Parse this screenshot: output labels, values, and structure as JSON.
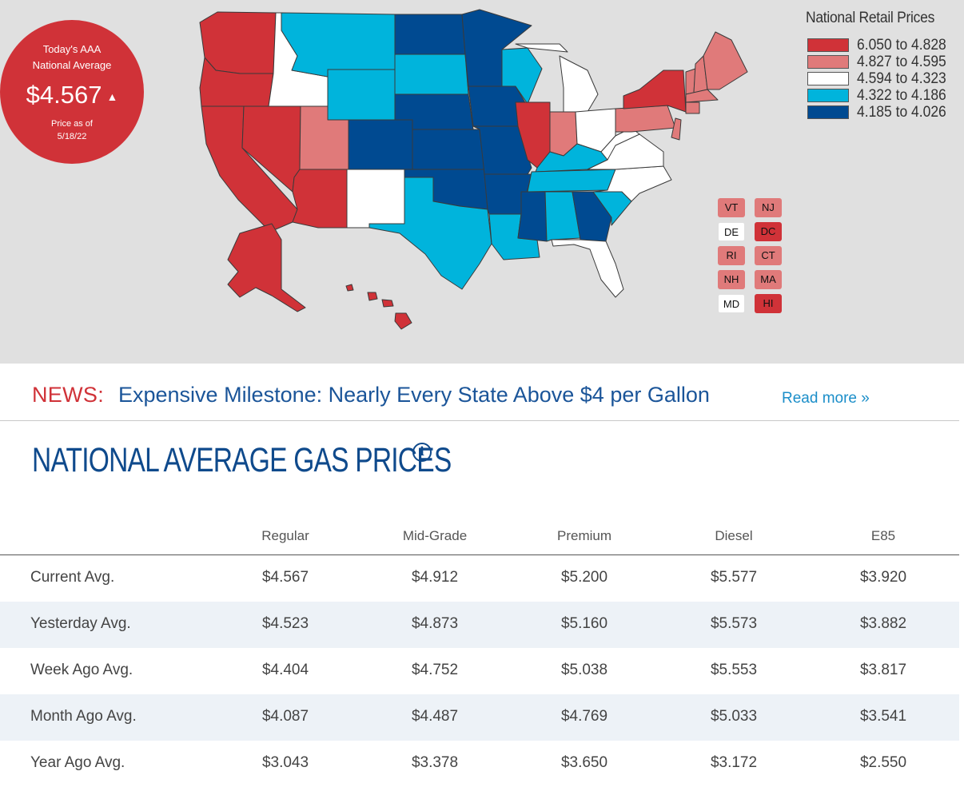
{
  "badge": {
    "title_line1": "Today's AAA",
    "title_line2": "National Average",
    "price": "$4.567",
    "trend_icon": "up-triangle-icon",
    "note_line1": "Price as of",
    "note_line2": "5/18/22",
    "color": "#d03238"
  },
  "legend": {
    "title": "National Retail Prices",
    "items": [
      {
        "label": "6.050 to 4.828",
        "color": "#d03238"
      },
      {
        "label": "4.827 to 4.595",
        "color": "#e07a7a"
      },
      {
        "label": "4.594 to 4.323",
        "color": "#ffffff"
      },
      {
        "label": "4.322 to 4.186",
        "color": "#00b4dc"
      },
      {
        "label": "4.185 to 4.026",
        "color": "#004a91"
      }
    ]
  },
  "small_states": [
    {
      "code": "VT",
      "color": "#e07a7a"
    },
    {
      "code": "NJ",
      "color": "#e07a7a"
    },
    {
      "code": "DE",
      "color": "#ffffff"
    },
    {
      "code": "DC",
      "color": "#d03238"
    },
    {
      "code": "RI",
      "color": "#e07a7a"
    },
    {
      "code": "CT",
      "color": "#e07a7a"
    },
    {
      "code": "NH",
      "color": "#e07a7a"
    },
    {
      "code": "MA",
      "color": "#e07a7a"
    },
    {
      "code": "MD",
      "color": "#ffffff"
    },
    {
      "code": "HI",
      "color": "#d03238"
    }
  ],
  "news": {
    "label": "NEWS:",
    "headline": "Expensive Milestone: Nearly Every State Above $4 per Gallon",
    "read_more": "Read more »"
  },
  "section": {
    "title": "NATIONAL AVERAGE GAS PRICES",
    "info_icon": "info-icon"
  },
  "table": {
    "columns": [
      "Regular",
      "Mid-Grade",
      "Premium",
      "Diesel",
      "E85"
    ],
    "rows": [
      {
        "label": "Current Avg.",
        "values": [
          "$4.567",
          "$4.912",
          "$5.200",
          "$5.577",
          "$3.920"
        ]
      },
      {
        "label": "Yesterday Avg.",
        "values": [
          "$4.523",
          "$4.873",
          "$5.160",
          "$5.573",
          "$3.882"
        ]
      },
      {
        "label": "Week Ago Avg.",
        "values": [
          "$4.404",
          "$4.752",
          "$5.038",
          "$5.553",
          "$3.817"
        ]
      },
      {
        "label": "Month Ago Avg.",
        "values": [
          "$4.087",
          "$4.487",
          "$4.769",
          "$5.033",
          "$3.541"
        ]
      },
      {
        "label": "Year Ago Avg.",
        "values": [
          "$3.043",
          "$3.378",
          "$3.650",
          "$3.172",
          "$2.550"
        ]
      }
    ]
  }
}
